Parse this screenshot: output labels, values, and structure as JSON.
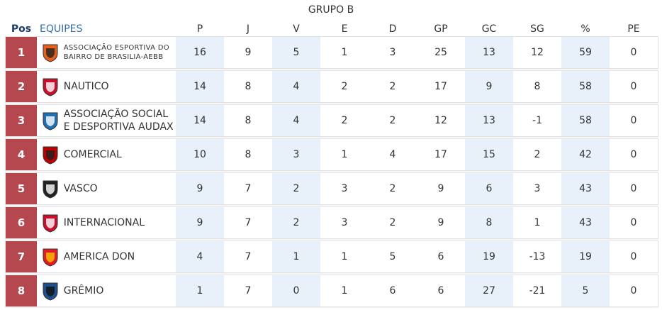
{
  "title": "GRUPO B",
  "table": {
    "headers": [
      "Pos",
      "EQUIPES",
      "P",
      "J",
      "V",
      "E",
      "D",
      "GP",
      "GC",
      "SG",
      "%",
      "PE"
    ],
    "rows": [
      [
        1,
        "ASSOCIAÇÃO ESPORTIVA DO BAIRRO DE BRASILIA-AEBB",
        16,
        9,
        5,
        1,
        3,
        25,
        13,
        12,
        59,
        0
      ],
      [
        2,
        "NAUTICO",
        14,
        8,
        4,
        2,
        2,
        17,
        9,
        8,
        58,
        0
      ],
      [
        3,
        "ASSOCIAÇÃO SOCIAL E DESPORTIVA AUDAX",
        14,
        8,
        4,
        2,
        2,
        12,
        13,
        -1,
        58,
        0
      ],
      [
        4,
        "COMERCIAL",
        10,
        8,
        3,
        1,
        4,
        17,
        15,
        2,
        42,
        0
      ],
      [
        5,
        "VASCO",
        9,
        7,
        2,
        3,
        2,
        9,
        6,
        3,
        43,
        0
      ],
      [
        6,
        "INTERNACIONAL",
        9,
        7,
        2,
        3,
        2,
        9,
        8,
        1,
        43,
        0
      ],
      [
        7,
        "AMERICA DON",
        4,
        7,
        1,
        1,
        5,
        6,
        19,
        -13,
        19,
        0
      ],
      [
        8,
        "GRÊMIO",
        1,
        7,
        0,
        1,
        6,
        6,
        27,
        -21,
        5,
        0
      ]
    ]
  }
}
